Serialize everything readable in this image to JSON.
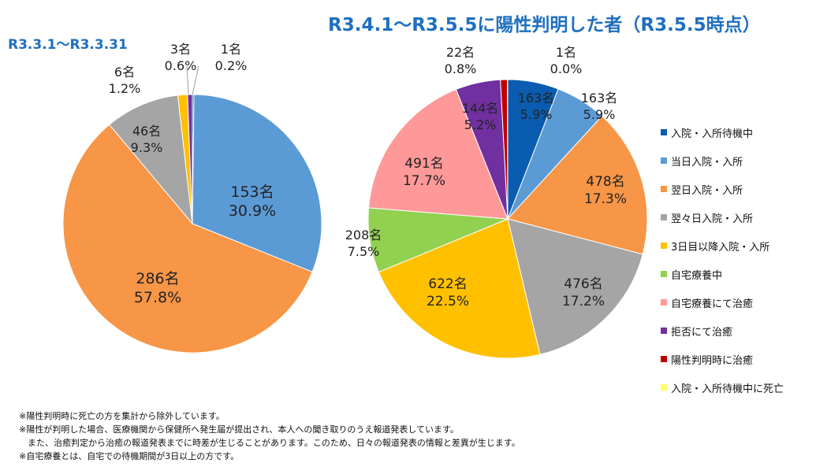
{
  "chart_data": [
    {
      "type": "pie",
      "title": "R3.3.1～R3.3.31",
      "slices": [
        {
          "category": "入院・入所待機中",
          "count": "1名",
          "percent": "0.2%",
          "value": 0.2,
          "color": "#1f5fa8"
        },
        {
          "category": "当日入院・入所",
          "count": "153名",
          "percent": "30.9%",
          "value": 30.9,
          "color": "#5b9bd5"
        },
        {
          "category": "翌日入院・入所",
          "count": "286名",
          "percent": "57.8%",
          "value": 57.8,
          "color": "#f79646"
        },
        {
          "category": "翌々日入院・入所",
          "count": "46名",
          "percent": "9.3%",
          "value": 9.3,
          "color": "#a5a5a5"
        },
        {
          "category": "3日目以降入院・入所",
          "count": "6名",
          "percent": "1.2%",
          "value": 1.2,
          "color": "#ffc000"
        },
        {
          "category": "拒否にて治癒",
          "count": "3名",
          "percent": "0.6%",
          "value": 0.6,
          "color": "#7030a0"
        }
      ]
    },
    {
      "type": "pie",
      "title": "R3.4.1～R3.5.5に陽性判明した者（R3.5.5時点）",
      "slices": [
        {
          "category": "入院・入所待機中",
          "count": "163名",
          "percent": "5.9%",
          "value": 5.9,
          "color": "#0a5cb0"
        },
        {
          "category": "当日入院・入所",
          "count": "163名",
          "percent": "5.9%",
          "value": 5.9,
          "color": "#5b9bd5"
        },
        {
          "category": "翌日入院・入所",
          "count": "478名",
          "percent": "17.3%",
          "value": 17.3,
          "color": "#f79646"
        },
        {
          "category": "翌々日入院・入所",
          "count": "476名",
          "percent": "17.2%",
          "value": 17.2,
          "color": "#a5a5a5"
        },
        {
          "category": "3日目以降入院・入所",
          "count": "622名",
          "percent": "22.5%",
          "value": 22.5,
          "color": "#ffc000"
        },
        {
          "category": "自宅療養中",
          "count": "208名",
          "percent": "7.5%",
          "value": 7.5,
          "color": "#92d050"
        },
        {
          "category": "自宅療養にて治癒",
          "count": "491名",
          "percent": "17.7%",
          "value": 17.7,
          "color": "#ff9999"
        },
        {
          "category": "拒否にて治癒",
          "count": "144名",
          "percent": "5.2%",
          "value": 5.2,
          "color": "#7030a0"
        },
        {
          "category": "陽性判明時に治癒",
          "count": "22名",
          "percent": "0.8%",
          "value": 0.8,
          "color": "#c00000"
        },
        {
          "category": "入院・入所待機中に死亡",
          "count": "1名",
          "percent": "0.0%",
          "value": 0.04,
          "color": "#ffff66"
        }
      ]
    }
  ],
  "legend": [
    {
      "label": "入院・入所待機中",
      "color": "#0a5cb0"
    },
    {
      "label": "当日入院・入所",
      "color": "#5b9bd5"
    },
    {
      "label": "翌日入院・入所",
      "color": "#f79646"
    },
    {
      "label": "翌々日入院・入所",
      "color": "#a5a5a5"
    },
    {
      "label": "3日目以降入院・入所",
      "color": "#ffc000"
    },
    {
      "label": "自宅療養中",
      "color": "#92d050"
    },
    {
      "label": "自宅療養にて治癒",
      "color": "#ff9999"
    },
    {
      "label": "拒否にて治癒",
      "color": "#7030a0"
    },
    {
      "label": "陽性判明時に治癒",
      "color": "#c00000"
    },
    {
      "label": "入院・入所待機中に死亡",
      "color": "#ffff66"
    }
  ],
  "footnotes": [
    "※陽性判明時に死亡の方を集計から除外しています。",
    "※陽性が判明した場合、医療機関から保健所へ発生届が提出され、本人への聞き取りのうえ報道発表しています。",
    "　また、治癒判定から治癒の報道発表までに時差が生じることがあります。このため、日々の報道発表の情報と差異が生じます。",
    "※自宅療養とは、自宅での待機期間が3日以上の方です。"
  ]
}
